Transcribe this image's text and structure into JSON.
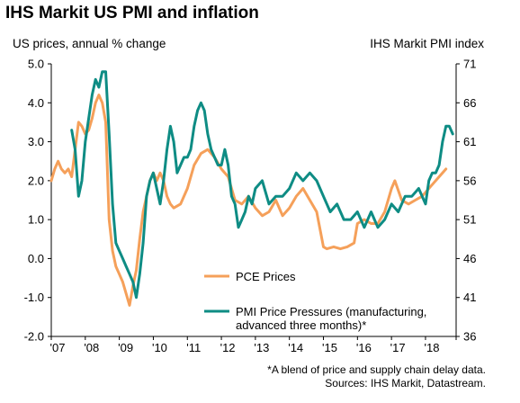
{
  "title": "IHS Markit US PMI and inflation",
  "left_axis_title": "US prices, annual % change",
  "right_axis_title": "IHS Markit PMI index",
  "footnote": "*A blend of price and supply chain delay data.",
  "sources": "Sources: IHS Markit, Datastream.",
  "colors": {
    "pce": "#F5A05A",
    "pmi": "#0E8C84"
  },
  "chart_data": {
    "type": "line",
    "title": "IHS Markit US PMI and inflation",
    "ylabel_left": "US prices, annual % change",
    "ylabel_right": "IHS Markit PMI index",
    "ylim_left": [
      -2.0,
      5.0
    ],
    "ylim_right": [
      36,
      71
    ],
    "yticks_left": [
      "5.0",
      "4.0",
      "3.0",
      "2.0",
      "1.0",
      "0.0",
      "-1.0",
      "-2.0"
    ],
    "yticks_right": [
      "71",
      "66",
      "61",
      "56",
      "51",
      "46",
      "41",
      "36"
    ],
    "xticks": [
      "'07",
      "'08",
      "'09",
      "'10",
      "'11",
      "'12",
      "'13",
      "'14",
      "'15",
      "'16",
      "'17",
      "'18"
    ],
    "xlim": [
      2007.0,
      2018.9
    ],
    "grid": false,
    "legend": "bottom-center",
    "series": [
      {
        "name": "PCE Prices",
        "axis": "left",
        "x": [
          2007.0,
          2007.1,
          2007.2,
          2007.3,
          2007.4,
          2007.5,
          2007.6,
          2007.7,
          2007.8,
          2007.9,
          2008.0,
          2008.1,
          2008.2,
          2008.3,
          2008.4,
          2008.5,
          2008.6,
          2008.7,
          2008.8,
          2008.9,
          2009.0,
          2009.1,
          2009.2,
          2009.3,
          2009.4,
          2009.5,
          2009.6,
          2009.7,
          2009.8,
          2009.9,
          2010.0,
          2010.1,
          2010.2,
          2010.3,
          2010.4,
          2010.5,
          2010.6,
          2010.8,
          2011.0,
          2011.2,
          2011.4,
          2011.6,
          2011.8,
          2012.0,
          2012.2,
          2012.4,
          2012.6,
          2012.8,
          2013.0,
          2013.2,
          2013.4,
          2013.6,
          2013.8,
          2014.0,
          2014.2,
          2014.4,
          2014.6,
          2014.8,
          2015.0,
          2015.1,
          2015.3,
          2015.5,
          2015.7,
          2015.9,
          2016.0,
          2016.2,
          2016.4,
          2016.6,
          2016.8,
          2017.0,
          2017.1,
          2017.3,
          2017.5,
          2017.7,
          2017.9,
          2018.0,
          2018.2,
          2018.4,
          2018.6
        ],
        "values": [
          2.0,
          2.3,
          2.5,
          2.3,
          2.2,
          2.3,
          2.1,
          2.8,
          3.5,
          3.4,
          3.2,
          3.3,
          3.6,
          4.0,
          4.2,
          4.0,
          3.5,
          1.0,
          0.2,
          -0.2,
          -0.4,
          -0.6,
          -0.9,
          -1.2,
          -0.7,
          -0.3,
          0.5,
          1.2,
          1.6,
          2.0,
          2.2,
          2.0,
          2.2,
          2.0,
          1.6,
          1.4,
          1.3,
          1.4,
          1.8,
          2.4,
          2.7,
          2.8,
          2.6,
          2.3,
          2.1,
          1.5,
          1.4,
          1.6,
          1.3,
          1.1,
          1.2,
          1.5,
          1.1,
          1.3,
          1.6,
          1.8,
          1.5,
          1.2,
          0.3,
          0.25,
          0.3,
          0.25,
          0.3,
          0.4,
          0.9,
          1.0,
          0.9,
          0.9,
          1.2,
          1.8,
          2.0,
          1.5,
          1.4,
          1.5,
          1.6,
          1.7,
          1.9,
          2.1,
          2.3
        ]
      },
      {
        "name": "PMI Price Pressures (manufacturing, advanced three months)*",
        "axis": "right",
        "x": [
          2007.6,
          2007.7,
          2007.8,
          2007.9,
          2008.0,
          2008.1,
          2008.2,
          2008.3,
          2008.4,
          2008.5,
          2008.6,
          2008.7,
          2008.8,
          2008.9,
          2009.0,
          2009.1,
          2009.2,
          2009.3,
          2009.4,
          2009.5,
          2009.6,
          2009.7,
          2009.8,
          2009.9,
          2010.0,
          2010.1,
          2010.2,
          2010.3,
          2010.4,
          2010.5,
          2010.6,
          2010.7,
          2010.8,
          2010.9,
          2011.0,
          2011.1,
          2011.2,
          2011.3,
          2011.4,
          2011.5,
          2011.6,
          2011.7,
          2011.8,
          2011.9,
          2012.0,
          2012.1,
          2012.2,
          2012.3,
          2012.4,
          2012.5,
          2012.6,
          2012.7,
          2012.8,
          2012.9,
          2013.0,
          2013.2,
          2013.4,
          2013.6,
          2013.8,
          2014.0,
          2014.2,
          2014.4,
          2014.6,
          2014.8,
          2015.0,
          2015.2,
          2015.4,
          2015.6,
          2015.8,
          2016.0,
          2016.2,
          2016.4,
          2016.6,
          2016.8,
          2017.0,
          2017.2,
          2017.4,
          2017.6,
          2017.8,
          2018.0,
          2018.1,
          2018.2,
          2018.3,
          2018.4,
          2018.5,
          2018.6,
          2018.7,
          2018.8
        ],
        "values": [
          62.5,
          60,
          54,
          56,
          61,
          64,
          67,
          69,
          68,
          70,
          70,
          62,
          53,
          48,
          47,
          46,
          45,
          44,
          43,
          41,
          44,
          48,
          54,
          56,
          57,
          55,
          53,
          56,
          60,
          63,
          61,
          57,
          58,
          59,
          59,
          60,
          63,
          65,
          66,
          65,
          62,
          60,
          59,
          58,
          58,
          60,
          58,
          54,
          53,
          50,
          51,
          52,
          54,
          53,
          55,
          56,
          53,
          54,
          54,
          55,
          57,
          56,
          57,
          56,
          54,
          52,
          53,
          51,
          51,
          52,
          50,
          52,
          50,
          51,
          53,
          52,
          54,
          54,
          55,
          53,
          56,
          57,
          57,
          58,
          61,
          63,
          63,
          62
        ]
      }
    ]
  }
}
